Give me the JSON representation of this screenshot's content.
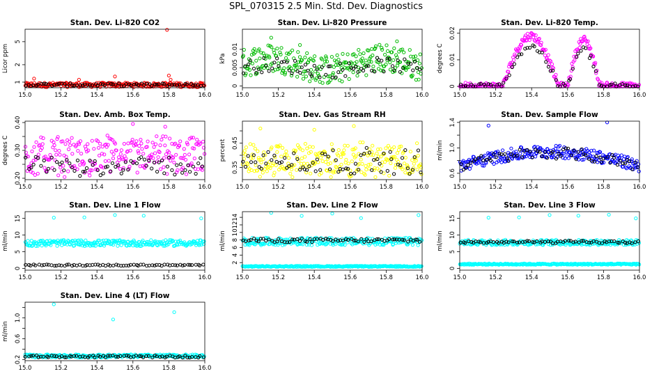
{
  "page": {
    "title": "SPL_070315  2.5 Min. Std. Dev. Diagnostics"
  },
  "chart_data": [
    {
      "type": "scatter",
      "title": "Stan. Dev. Li-820 CO2",
      "ylabel": "Licor ppm",
      "xlim": [
        15.0,
        16.0
      ],
      "ylim": [
        0.8,
        8.2
      ],
      "yscale": "log",
      "xticks": [
        "15.0",
        "15.2",
        "15.4",
        "15.6",
        "15.8",
        "16.0"
      ],
      "yticks": [
        1,
        2,
        5
      ],
      "color": "#ff0000",
      "series": [
        {
          "color": "#ff0000",
          "pattern": "band",
          "base": 0.9,
          "amp": 0.08,
          "x": [
            15.05,
            15.3,
            15.5,
            15.79,
            15.8,
            15.81
          ],
          "y": [
            1.15,
            1.1,
            1.25,
            8.0,
            1.3,
            1.1
          ]
        },
        {
          "color": "#000000",
          "pattern": "band",
          "base": 0.9,
          "amp": 0.05,
          "x": [],
          "y": []
        }
      ]
    },
    {
      "type": "scatter",
      "title": "Stan. Dev. Li-820 Pressure",
      "ylabel": "kPa",
      "xlim": [
        15.0,
        16.0
      ],
      "ylim": [
        -0.0005,
        0.0155
      ],
      "xticks": [
        "15.0",
        "15.2",
        "15.4",
        "15.6",
        "15.8",
        "16.0"
      ],
      "yticks": [
        0.0,
        0.005,
        0.01
      ],
      "color": "#00bb00",
      "series": [
        {
          "color": "#00bb00",
          "pattern": "wave",
          "base": 0.006,
          "amp": 0.004,
          "x": [
            15.16,
            15.32,
            15.86
          ],
          "y": [
            0.0132,
            0.0112,
            0.0122
          ]
        },
        {
          "color": "#000000",
          "pattern": "wave",
          "base": 0.005,
          "amp": 0.002,
          "x": [],
          "y": []
        }
      ]
    },
    {
      "type": "scatter",
      "title": "Stan. Dev. Li-820 Temp.",
      "ylabel": "degrees C",
      "xlim": [
        15.0,
        16.0
      ],
      "ylim": [
        -0.0005,
        0.0215
      ],
      "xticks": [
        "15.0",
        "15.2",
        "15.4",
        "15.6",
        "15.8",
        "16.0"
      ],
      "yticks": [
        0.0,
        0.01,
        0.02
      ],
      "color": "#ff00ff",
      "series": [
        {
          "color": "#ff00ff",
          "pattern": "humps",
          "base": 0.0,
          "amp": 0.019,
          "x": [],
          "y": []
        },
        {
          "color": "#000000",
          "pattern": "humps",
          "base": 0.0,
          "amp": 0.015,
          "x": [],
          "y": []
        }
      ]
    },
    {
      "type": "scatter",
      "title": "Stan. Dev. Amb. Box Temp.",
      "ylabel": "degrees C",
      "xlim": [
        15.0,
        16.0
      ],
      "ylim": [
        0.195,
        0.405
      ],
      "xticks": [
        "15.0",
        "15.2",
        "15.4",
        "15.6",
        "15.8",
        "16.0"
      ],
      "yticks": [
        0.2,
        0.25,
        0.3,
        0.35,
        0.4
      ],
      "yticklabels": [
        "0.20",
        "",
        "0.30",
        "",
        "0.40"
      ],
      "color": "#ff00ff",
      "series": [
        {
          "color": "#ff00ff",
          "pattern": "noise",
          "base": 0.28,
          "amp": 0.06,
          "x": [
            15.6,
            15.78
          ],
          "y": [
            0.395,
            0.385
          ]
        },
        {
          "color": "#000000",
          "pattern": "noise",
          "base": 0.245,
          "amp": 0.03,
          "x": [],
          "y": []
        }
      ]
    },
    {
      "type": "scatter",
      "title": "Stan. Dev. Gas Stream RH",
      "ylabel": "percent",
      "xlim": [
        15.0,
        16.0
      ],
      "ylim": [
        0.3,
        0.54
      ],
      "xticks": [
        "15.0",
        "15.2",
        "15.4",
        "15.6",
        "15.8",
        "16.0"
      ],
      "yticks": [
        0.35,
        0.4,
        0.45,
        0.5
      ],
      "yticklabels": [
        "0.35",
        "",
        "0.45",
        ""
      ],
      "color": "#ffff00",
      "series": [
        {
          "color": "#ffff00",
          "pattern": "noise",
          "base": 0.38,
          "amp": 0.06,
          "x": [
            15.1,
            15.4,
            15.62
          ],
          "y": [
            0.51,
            0.505,
            0.52
          ]
        },
        {
          "color": "#000000",
          "pattern": "noise",
          "base": 0.375,
          "amp": 0.045,
          "x": [],
          "y": []
        }
      ]
    },
    {
      "type": "scatter",
      "title": "Stan. Dev. Sample Flow",
      "ylabel": "ml/min",
      "xlim": [
        15.0,
        16.0
      ],
      "ylim": [
        0.5,
        1.42
      ],
      "xticks": [
        "15.0",
        "15.2",
        "15.4",
        "15.6",
        "15.8",
        "16.0"
      ],
      "yticks": [
        0.6,
        0.8,
        1.0,
        1.2,
        1.4
      ],
      "yticklabels": [
        "0.6",
        "",
        "1.0",
        "",
        "1.4"
      ],
      "color": "#0000ff",
      "series": [
        {
          "color": "#0000ff",
          "pattern": "arch",
          "base": 0.72,
          "amp": 0.22,
          "x": [
            15.16,
            15.82
          ],
          "y": [
            1.35,
            1.4
          ]
        },
        {
          "color": "#000000",
          "pattern": "arch",
          "base": 0.72,
          "amp": 0.2,
          "x": [],
          "y": []
        }
      ]
    },
    {
      "type": "scatter",
      "title": "Stan. Dev. Line 1 Flow",
      "ylabel": "ml/min",
      "xlim": [
        15.0,
        16.0
      ],
      "ylim": [
        -0.5,
        17.0
      ],
      "xticks": [
        "15.0",
        "15.2",
        "15.4",
        "15.6",
        "15.8",
        "16.0"
      ],
      "yticks": [
        0,
        5,
        10,
        15
      ],
      "color": "#00ffff",
      "series": [
        {
          "color": "#00ffff",
          "pattern": "band",
          "base": 7.6,
          "amp": 0.9,
          "x": [
            15.16,
            15.33,
            15.5,
            15.66,
            15.98
          ],
          "y": [
            15.2,
            15.3,
            16.0,
            15.8,
            15.0
          ]
        },
        {
          "color": "#000000",
          "pattern": "band",
          "base": 1.0,
          "amp": 0.2,
          "x": [],
          "y": []
        }
      ]
    },
    {
      "type": "scatter",
      "title": "Stan. Dev. Line 2 Flow",
      "ylabel": "ml/min",
      "xlim": [
        15.0,
        16.0
      ],
      "ylim": [
        0.0,
        15.5
      ],
      "xticks": [
        "15.0",
        "15.2",
        "15.4",
        "15.6",
        "15.8",
        "16.0"
      ],
      "yticks": [
        2,
        4,
        6,
        8,
        10,
        12,
        14
      ],
      "color": "#00ffff",
      "series": [
        {
          "color": "#00ffff",
          "pattern": "band",
          "base": 7.6,
          "amp": 1.0,
          "x": [
            15.16,
            15.33,
            15.5,
            15.66,
            15.98
          ],
          "y": [
            15.2,
            14.4,
            15.0,
            13.8,
            14.6
          ]
        },
        {
          "color": "#00ffff",
          "pattern": "band",
          "base": 1.0,
          "amp": 0.15,
          "x": [],
          "y": []
        },
        {
          "color": "#000000",
          "pattern": "band",
          "base": 7.9,
          "amp": 0.5,
          "x": [],
          "y": []
        }
      ]
    },
    {
      "type": "scatter",
      "title": "Stan. Dev. Line 3 Flow",
      "ylabel": "ml/min",
      "xlim": [
        15.0,
        16.0
      ],
      "ylim": [
        -0.5,
        17.0
      ],
      "xticks": [
        "15.0",
        "15.2",
        "15.4",
        "15.6",
        "15.8",
        "16.0"
      ],
      "yticks": [
        0,
        5,
        10,
        15
      ],
      "color": "#00ffff",
      "series": [
        {
          "color": "#00ffff",
          "pattern": "band",
          "base": 7.8,
          "amp": 0.8,
          "x": [
            15.16,
            15.33,
            15.5,
            15.66,
            15.83,
            15.98
          ],
          "y": [
            15.2,
            15.3,
            16.0,
            15.8,
            16.1,
            15.0
          ]
        },
        {
          "color": "#00ffff",
          "pattern": "band",
          "base": 1.3,
          "amp": 0.2,
          "x": [],
          "y": []
        },
        {
          "color": "#000000",
          "pattern": "band",
          "base": 7.9,
          "amp": 0.4,
          "x": [],
          "y": []
        }
      ]
    },
    {
      "type": "scatter",
      "title": "Stan. Dev. Line 4 (LT) Flow",
      "ylabel": "ml/min",
      "xlim": [
        15.0,
        16.0
      ],
      "ylim": [
        0.18,
        1.3
      ],
      "xticks": [
        "15.0",
        "15.2",
        "15.4",
        "15.6",
        "15.8",
        "16.0"
      ],
      "yticks": [
        0.2,
        0.4,
        0.6,
        0.8,
        1.0,
        1.2
      ],
      "yticklabels": [
        "0.2",
        "",
        "0.6",
        "",
        "1.0",
        ""
      ],
      "color": "#00ffff",
      "series": [
        {
          "color": "#00ffff",
          "pattern": "band",
          "base": 0.27,
          "amp": 0.03,
          "x": [
            15.16,
            15.49,
            15.83
          ],
          "y": [
            1.26,
            0.97,
            1.11
          ]
        },
        {
          "color": "#000000",
          "pattern": "band",
          "base": 0.26,
          "amp": 0.02,
          "x": [],
          "y": []
        }
      ]
    }
  ]
}
